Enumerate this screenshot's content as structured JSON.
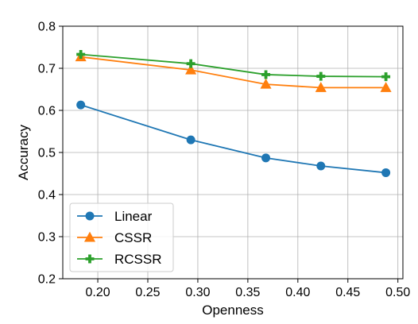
{
  "chart_data": {
    "type": "line",
    "xlabel": "Openness",
    "ylabel": "Accuracy",
    "xlim": [
      0.165,
      0.505
    ],
    "ylim": [
      0.2,
      0.8
    ],
    "xticks": [
      0.2,
      0.25,
      0.3,
      0.35,
      0.4,
      0.45,
      0.5
    ],
    "yticks": [
      0.2,
      0.3,
      0.4,
      0.5,
      0.6,
      0.7,
      0.8
    ],
    "xtick_labels": [
      "0.20",
      "0.25",
      "0.30",
      "0.35",
      "0.40",
      "0.45",
      "0.50"
    ],
    "ytick_labels": [
      "0.2",
      "0.3",
      "0.4",
      "0.5",
      "0.6",
      "0.7",
      "0.8"
    ],
    "grid": true,
    "legend_position": "lower-left",
    "x": [
      0.183,
      0.293,
      0.368,
      0.423,
      0.488
    ],
    "series": [
      {
        "name": "Linear",
        "color": "#1f77b4",
        "marker": "circle",
        "values": [
          0.613,
          0.53,
          0.487,
          0.468,
          0.452
        ]
      },
      {
        "name": "CSSR",
        "color": "#ff7f0e",
        "marker": "triangle",
        "values": [
          0.727,
          0.696,
          0.662,
          0.654,
          0.654
        ]
      },
      {
        "name": "RCSSR",
        "color": "#2ca02c",
        "marker": "plus",
        "values": [
          0.733,
          0.711,
          0.685,
          0.681,
          0.68
        ]
      }
    ]
  }
}
